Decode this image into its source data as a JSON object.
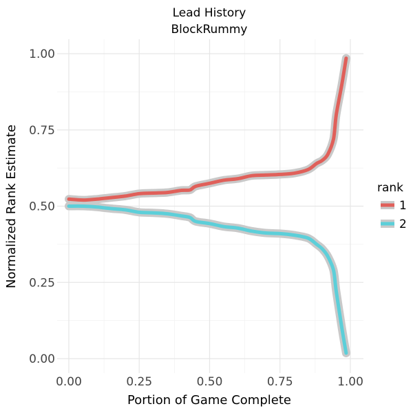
{
  "chart_data": {
    "type": "line",
    "title": "Lead History",
    "subtitle": "BlockRummy",
    "xlabel": "Portion of Game Complete",
    "ylabel": "Normalized Rank Estimate",
    "xlim": [
      0,
      1
    ],
    "ylim": [
      0,
      1
    ],
    "x_ticks": [
      0,
      0.25,
      0.5,
      0.75,
      1
    ],
    "x_tick_labels": [
      "0.00",
      "0.25",
      "0.50",
      "0.75",
      "1.00"
    ],
    "y_ticks": [
      0,
      0.25,
      0.5,
      0.75,
      1
    ],
    "y_tick_labels": [
      "0.00",
      "0.25",
      "0.50",
      "0.75",
      "1.00"
    ],
    "grid": true,
    "legend": {
      "title": "rank",
      "placement": "right"
    },
    "series": [
      {
        "name": "1",
        "color": "#E0605A",
        "points": [
          [
            0.0,
            0.523
          ],
          [
            0.05,
            0.52
          ],
          [
            0.1,
            0.523
          ],
          [
            0.15,
            0.528
          ],
          [
            0.2,
            0.533
          ],
          [
            0.25,
            0.541
          ],
          [
            0.3,
            0.543
          ],
          [
            0.35,
            0.545
          ],
          [
            0.4,
            0.552
          ],
          [
            0.43,
            0.553
          ],
          [
            0.45,
            0.565
          ],
          [
            0.5,
            0.575
          ],
          [
            0.55,
            0.585
          ],
          [
            0.6,
            0.59
          ],
          [
            0.65,
            0.6
          ],
          [
            0.7,
            0.602
          ],
          [
            0.75,
            0.604
          ],
          [
            0.8,
            0.608
          ],
          [
            0.85,
            0.62
          ],
          [
            0.88,
            0.64
          ],
          [
            0.9,
            0.65
          ],
          [
            0.92,
            0.67
          ],
          [
            0.94,
            0.72
          ],
          [
            0.95,
            0.8
          ],
          [
            0.97,
            0.9
          ],
          [
            0.985,
            0.985
          ]
        ]
      },
      {
        "name": "2",
        "color": "#5CCFD9",
        "points": [
          [
            0.0,
            0.5
          ],
          [
            0.05,
            0.5
          ],
          [
            0.1,
            0.497
          ],
          [
            0.15,
            0.492
          ],
          [
            0.2,
            0.488
          ],
          [
            0.25,
            0.48
          ],
          [
            0.3,
            0.478
          ],
          [
            0.35,
            0.475
          ],
          [
            0.4,
            0.468
          ],
          [
            0.43,
            0.463
          ],
          [
            0.45,
            0.45
          ],
          [
            0.5,
            0.443
          ],
          [
            0.55,
            0.433
          ],
          [
            0.6,
            0.428
          ],
          [
            0.65,
            0.418
          ],
          [
            0.7,
            0.412
          ],
          [
            0.75,
            0.41
          ],
          [
            0.8,
            0.405
          ],
          [
            0.85,
            0.395
          ],
          [
            0.88,
            0.375
          ],
          [
            0.9,
            0.36
          ],
          [
            0.92,
            0.335
          ],
          [
            0.94,
            0.29
          ],
          [
            0.95,
            0.22
          ],
          [
            0.97,
            0.1
          ],
          [
            0.985,
            0.018
          ]
        ]
      }
    ]
  }
}
